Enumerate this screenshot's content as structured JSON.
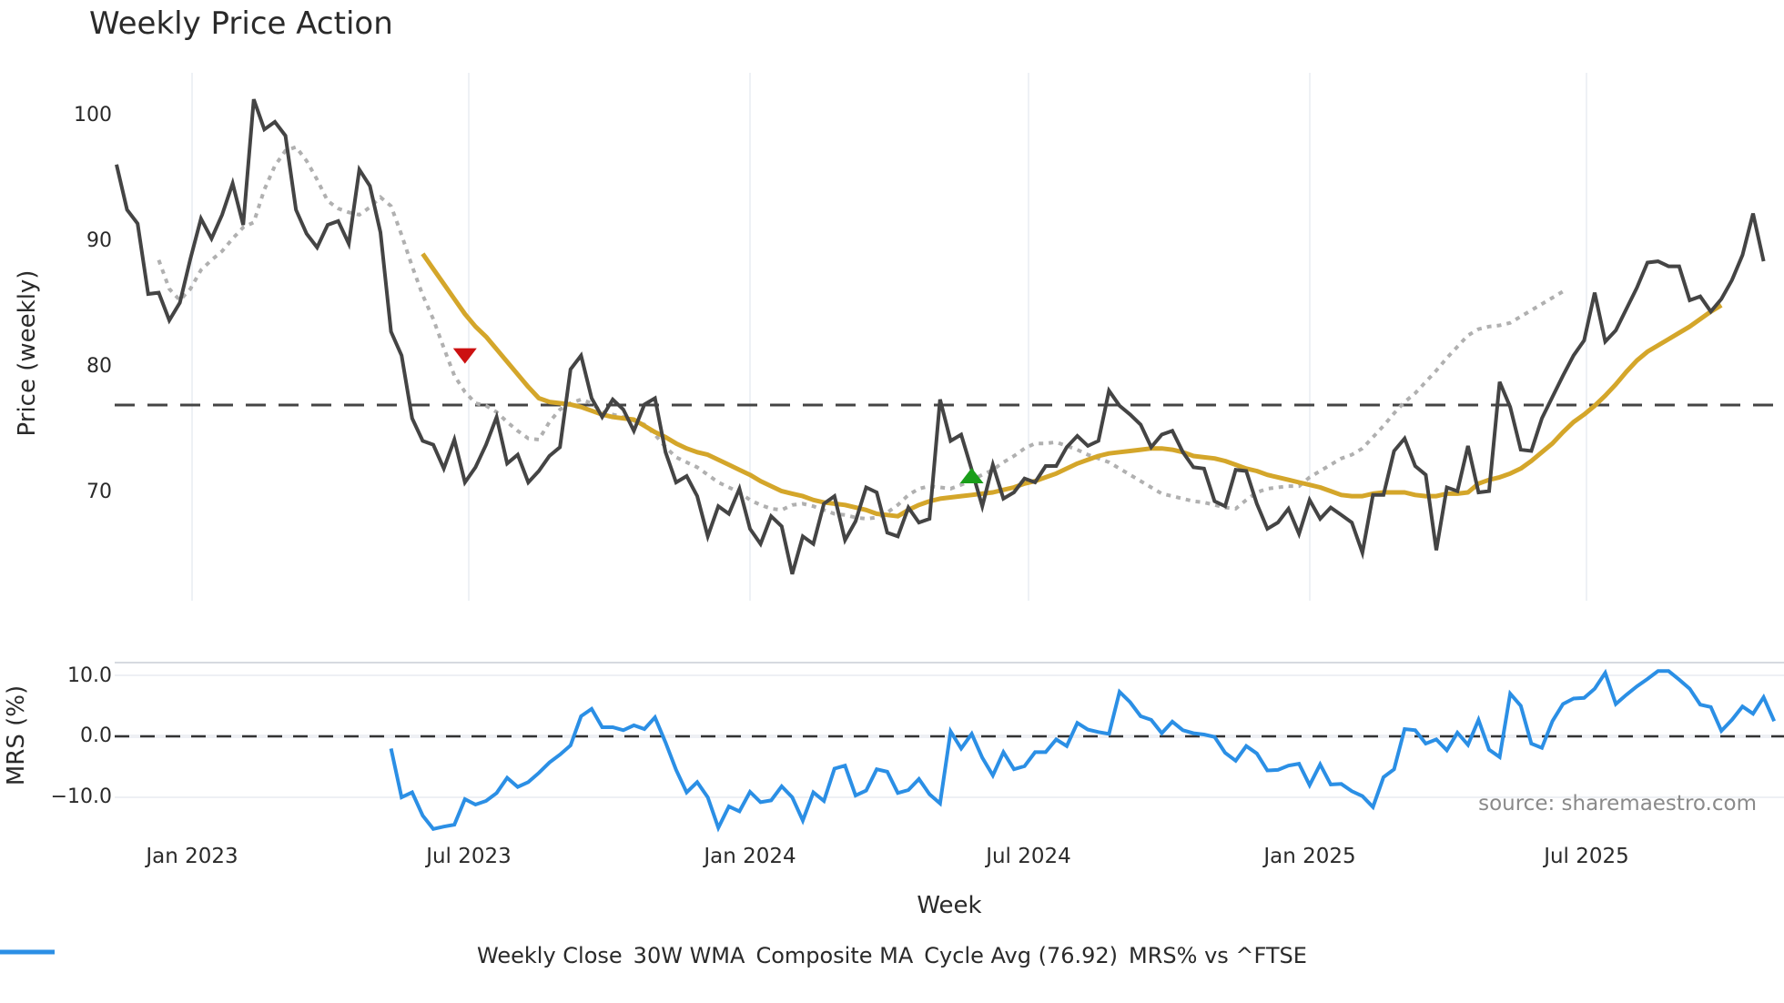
{
  "header": {
    "title": "Weekly Price Action"
  },
  "legend": {
    "items": [
      {
        "label": "Weekly Close",
        "color": "#444444",
        "style": "solid"
      },
      {
        "label": "30W WMA",
        "color": "#D4A62A",
        "style": "solid"
      },
      {
        "label": "Composite MA",
        "color": "#B0B0B0",
        "style": "dotted"
      },
      {
        "label": "Cycle Avg (76.92)",
        "color": "#444444",
        "style": "dashed"
      },
      {
        "label": "MRS% vs ^FTSE",
        "color": "#2B8FE5",
        "style": "solid"
      }
    ]
  },
  "annotations": {
    "source": "source: sharemaestro.com"
  },
  "colors": {
    "close": "#444444",
    "wma": "#D4A62A",
    "composite": "#B0B0B0",
    "cycle": "#444444",
    "mrs": "#2B8FE5",
    "sell_marker": "#CC1111",
    "buy_marker": "#1A9E1A",
    "grid": "#E8ECF2"
  },
  "chart_data": [
    {
      "type": "line",
      "title": "Weekly Price Action",
      "xlabel": "",
      "ylabel": "Price (weekly)",
      "yticks": [
        70,
        80,
        90,
        100
      ],
      "ylim": [
        61.5,
        104
      ],
      "x_tick_labels": [
        "Jan 2023",
        "Jul 2023",
        "Jan 2024",
        "Jul 2024",
        "Jan 2025",
        "Jul 2025"
      ],
      "x_start_week_index": 0,
      "week_count": 160,
      "grid": true,
      "cycle_avg": 76.92,
      "series": [
        {
          "name": "Weekly Close",
          "start": 0,
          "values": [
            96.1,
            92.5,
            91.4,
            85.8,
            85.9,
            83.7,
            85.1,
            88.6,
            91.8,
            90.2,
            92.1,
            94.6,
            91.3,
            101.3,
            98.9,
            99.5,
            98.4,
            92.5,
            90.6,
            89.5,
            91.3,
            91.6,
            89.8,
            95.7,
            94.4,
            90.7,
            82.8,
            80.9,
            75.9,
            74.1,
            73.8,
            71.9,
            74.2,
            70.8,
            72.0,
            73.8,
            76.0,
            72.3,
            73.0,
            70.8,
            71.7,
            72.9,
            73.6,
            79.8,
            80.9,
            77.5,
            76.0,
            77.4,
            76.6,
            74.9,
            77.0,
            77.5,
            73.2,
            70.8,
            71.3,
            69.7,
            66.5,
            68.9,
            68.3,
            70.3,
            67.1,
            65.9,
            68.1,
            67.3,
            63.5,
            66.5,
            65.9,
            69.1,
            69.7,
            66.2,
            67.7,
            70.4,
            70.0,
            66.8,
            66.5,
            68.8,
            67.6,
            67.9,
            77.4,
            74.1,
            74.6,
            71.8,
            68.9,
            72.2,
            69.5,
            70.0,
            71.1,
            70.8,
            72.1,
            72.1,
            73.6,
            74.5,
            73.7,
            74.1,
            78.1,
            76.9,
            76.2,
            75.4,
            73.6,
            74.6,
            74.9,
            73.2,
            72.0,
            71.9,
            69.3,
            68.9,
            71.8,
            71.7,
            69.1,
            67.1,
            67.6,
            68.7,
            66.7,
            69.4,
            67.9,
            68.8,
            68.2,
            67.6,
            65.2,
            69.8,
            69.8,
            73.3,
            74.3,
            72.1,
            71.4,
            65.4,
            70.4,
            70.1,
            73.7,
            70.0,
            70.1,
            78.8,
            76.8,
            73.4,
            73.3,
            75.9,
            77.6,
            79.3,
            80.9,
            82.1,
            85.9,
            82.0,
            82.9,
            84.6,
            86.3,
            88.3,
            88.4,
            88.0,
            88.0,
            85.3,
            85.6,
            84.4,
            85.4,
            86.9,
            88.9,
            92.2,
            88.4
          ]
        },
        {
          "name": "30W WMA",
          "start": 29,
          "values": [
            89.0,
            87.8,
            86.6,
            85.4,
            84.2,
            83.2,
            82.4,
            81.4,
            80.4,
            79.4,
            78.4,
            77.5,
            77.2,
            77.1,
            77.0,
            76.8,
            76.5,
            76.2,
            76.0,
            75.9,
            75.8,
            75.3,
            74.8,
            74.4,
            73.9,
            73.5,
            73.2,
            73.0,
            72.6,
            72.2,
            71.8,
            71.4,
            70.9,
            70.5,
            70.1,
            69.9,
            69.7,
            69.4,
            69.2,
            69.1,
            69.0,
            68.8,
            68.6,
            68.3,
            68.2,
            68.1,
            68.6,
            69.0,
            69.3,
            69.5,
            69.6,
            69.7,
            69.8,
            69.9,
            70.0,
            70.2,
            70.4,
            70.7,
            70.9,
            71.2,
            71.5,
            71.9,
            72.3,
            72.6,
            72.9,
            73.1,
            73.2,
            73.3,
            73.4,
            73.5,
            73.5,
            73.4,
            73.2,
            72.9,
            72.8,
            72.7,
            72.5,
            72.2,
            71.9,
            71.7,
            71.4,
            71.2,
            71.0,
            70.8,
            70.6,
            70.4,
            70.1,
            69.8,
            69.7,
            69.7,
            69.9,
            70.0,
            70.0,
            70.0,
            69.8,
            69.7,
            69.7,
            69.9,
            69.9,
            70.0,
            70.7,
            71.0,
            71.2,
            71.5,
            71.9,
            72.5,
            73.2,
            73.9,
            74.8,
            75.6,
            76.2,
            76.9,
            77.7,
            78.6,
            79.6,
            80.5,
            81.2,
            81.7,
            82.2,
            82.7,
            83.2,
            83.8,
            84.4,
            84.9
          ]
        },
        {
          "name": "Composite MA",
          "start": 4,
          "values": [
            88.5,
            86.2,
            85.3,
            86.2,
            87.7,
            88.5,
            89.2,
            90.2,
            91.1,
            91.5,
            94.1,
            96.0,
            97.2,
            97.5,
            96.4,
            94.9,
            93.2,
            92.6,
            92.3,
            92.1,
            92.7,
            93.5,
            92.8,
            90.5,
            88.0,
            85.7,
            83.8,
            81.5,
            79.3,
            78.0,
            77.1,
            76.9,
            76.4,
            75.6,
            74.9,
            74.3,
            74.2,
            75.6,
            76.6,
            77.1,
            77.4,
            77.1,
            76.4,
            76.2,
            76.0,
            75.7,
            75.4,
            74.6,
            73.6,
            72.8,
            72.4,
            72.0,
            71.4,
            70.8,
            70.4,
            70.0,
            69.4,
            69.0,
            68.7,
            68.6,
            69.0,
            69.1,
            68.9,
            68.6,
            68.3,
            68.2,
            68.0,
            67.9,
            68.0,
            68.4,
            69.0,
            69.8,
            70.3,
            70.5,
            70.4,
            70.3,
            70.6,
            71.0,
            71.4,
            71.8,
            72.4,
            72.9,
            73.5,
            73.9,
            73.9,
            74.0,
            73.7,
            73.4,
            73.0,
            72.7,
            72.4,
            71.9,
            71.4,
            70.9,
            70.4,
            69.9,
            69.7,
            69.5,
            69.3,
            69.2,
            69.0,
            68.8,
            68.7,
            69.4,
            70.0,
            70.3,
            70.4,
            70.5,
            70.5,
            71.2,
            71.7,
            72.2,
            72.7,
            73.0,
            73.5,
            74.4,
            75.3,
            76.3,
            77.2,
            77.9,
            78.8,
            79.7,
            80.7,
            81.6,
            82.5,
            83.0,
            83.2,
            83.3,
            83.5,
            84.0,
            84.5,
            85.0,
            85.5,
            86.0
          ]
        },
        {
          "name": "Cycle Avg (76.92)",
          "constant": 76.92
        }
      ],
      "markers": [
        {
          "type": "sell",
          "shape": "triangle-down",
          "week": 33,
          "value": 80.9,
          "color": "#CC1111"
        },
        {
          "type": "buy",
          "shape": "triangle-up",
          "week": 81,
          "value": 71.3,
          "color": "#1A9E1A"
        }
      ]
    },
    {
      "type": "line",
      "title": "",
      "xlabel": "Week",
      "ylabel": "MRS (%)",
      "yticks": [
        -10.0,
        0.0,
        10.0
      ],
      "ytick_labels": [
        "−10.0",
        "0.0",
        "10.0"
      ],
      "ylim": [
        -16,
        12
      ],
      "zero_line": true,
      "series": [
        {
          "name": "MRS% vs ^FTSE",
          "start": 26,
          "values": [
            -2.0,
            -10.0,
            -9.2,
            -13.0,
            -15.2,
            -14.8,
            -14.5,
            -10.3,
            -11.2,
            -10.6,
            -9.3,
            -6.8,
            -8.3,
            -7.5,
            -6.0,
            -4.3,
            -3.0,
            -1.5,
            3.3,
            4.5,
            1.5,
            1.5,
            1.0,
            1.8,
            1.2,
            3.1,
            -1.0,
            -5.5,
            -9.2,
            -7.5,
            -10.0,
            -15.0,
            -11.5,
            -12.3,
            -9.1,
            -10.8,
            -10.5,
            -8.2,
            -10.0,
            -13.8,
            -9.2,
            -10.6,
            -5.3,
            -4.8,
            -9.7,
            -8.9,
            -5.4,
            -5.8,
            -9.3,
            -8.8,
            -7.0,
            -9.5,
            -11.0,
            0.8,
            -2.0,
            0.4,
            -3.5,
            -6.4,
            -2.6,
            -5.4,
            -4.9,
            -2.6,
            -2.6,
            -0.5,
            -1.6,
            2.2,
            1.1,
            0.7,
            0.4,
            7.3,
            5.6,
            3.3,
            2.7,
            0.5,
            2.4,
            1.0,
            0.5,
            0.3,
            -0.1,
            -2.7,
            -4.0,
            -1.6,
            -2.8,
            -5.6,
            -5.5,
            -4.8,
            -4.5,
            -8.0,
            -4.6,
            -7.9,
            -7.8,
            -9.0,
            -9.8,
            -11.6,
            -6.7,
            -5.4,
            1.2,
            1.0,
            -1.2,
            -0.5,
            -2.3,
            0.6,
            -1.4,
            2.7,
            -2.2,
            -3.4,
            7.0,
            5.0,
            -1.2,
            -1.9,
            2.5,
            5.3,
            6.2,
            6.3,
            7.8,
            10.4,
            5.3,
            6.8,
            8.2,
            9.4,
            10.7,
            10.7,
            9.3,
            7.8,
            5.2,
            4.8,
            0.9,
            2.7,
            4.9,
            3.7,
            6.4,
            2.5
          ]
        }
      ]
    }
  ]
}
